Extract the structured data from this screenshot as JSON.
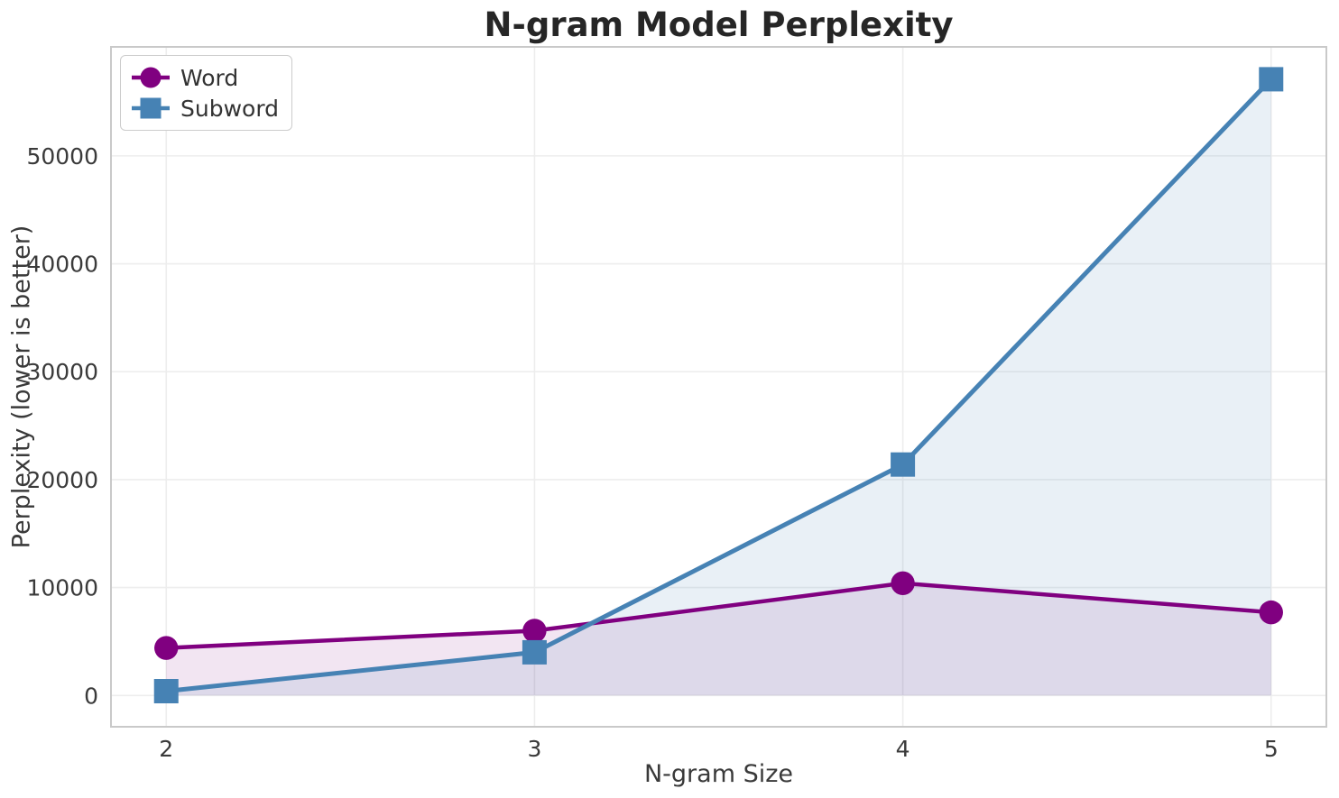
{
  "chart_data": {
    "type": "line",
    "title": "N-gram Model Perplexity",
    "xlabel": "N-gram Size",
    "ylabel": "Perplexity (lower is better)",
    "x": [
      2,
      3,
      4,
      5
    ],
    "xtick_labels": [
      "2",
      "3",
      "4",
      "5"
    ],
    "yticks": [
      0,
      10000,
      20000,
      30000,
      40000,
      50000
    ],
    "ytick_labels": [
      "0",
      "10000",
      "20000",
      "30000",
      "40000",
      "50000"
    ],
    "xlim": [
      1.85,
      5.15
    ],
    "ylim": [
      -2900,
      60100
    ],
    "grid": true,
    "legend_position": "upper left",
    "fill_baseline": 0,
    "series": [
      {
        "name": "Word",
        "marker": "circle",
        "color": "#800080",
        "fill_opacity": 0.1,
        "values": [
          4400,
          6000,
          10400,
          7700
        ]
      },
      {
        "name": "Subword",
        "marker": "square",
        "color": "#4682B4",
        "fill_opacity": 0.12,
        "values": [
          400,
          4000,
          21400,
          57100
        ]
      }
    ]
  },
  "style_colors": {
    "grid": "#EDEDED",
    "spine": "#C9C9C9",
    "tick_text": "#3A3A3A",
    "title_text": "#262626",
    "background": "#FFFFFF",
    "legend_border": "#CCCCCC"
  }
}
